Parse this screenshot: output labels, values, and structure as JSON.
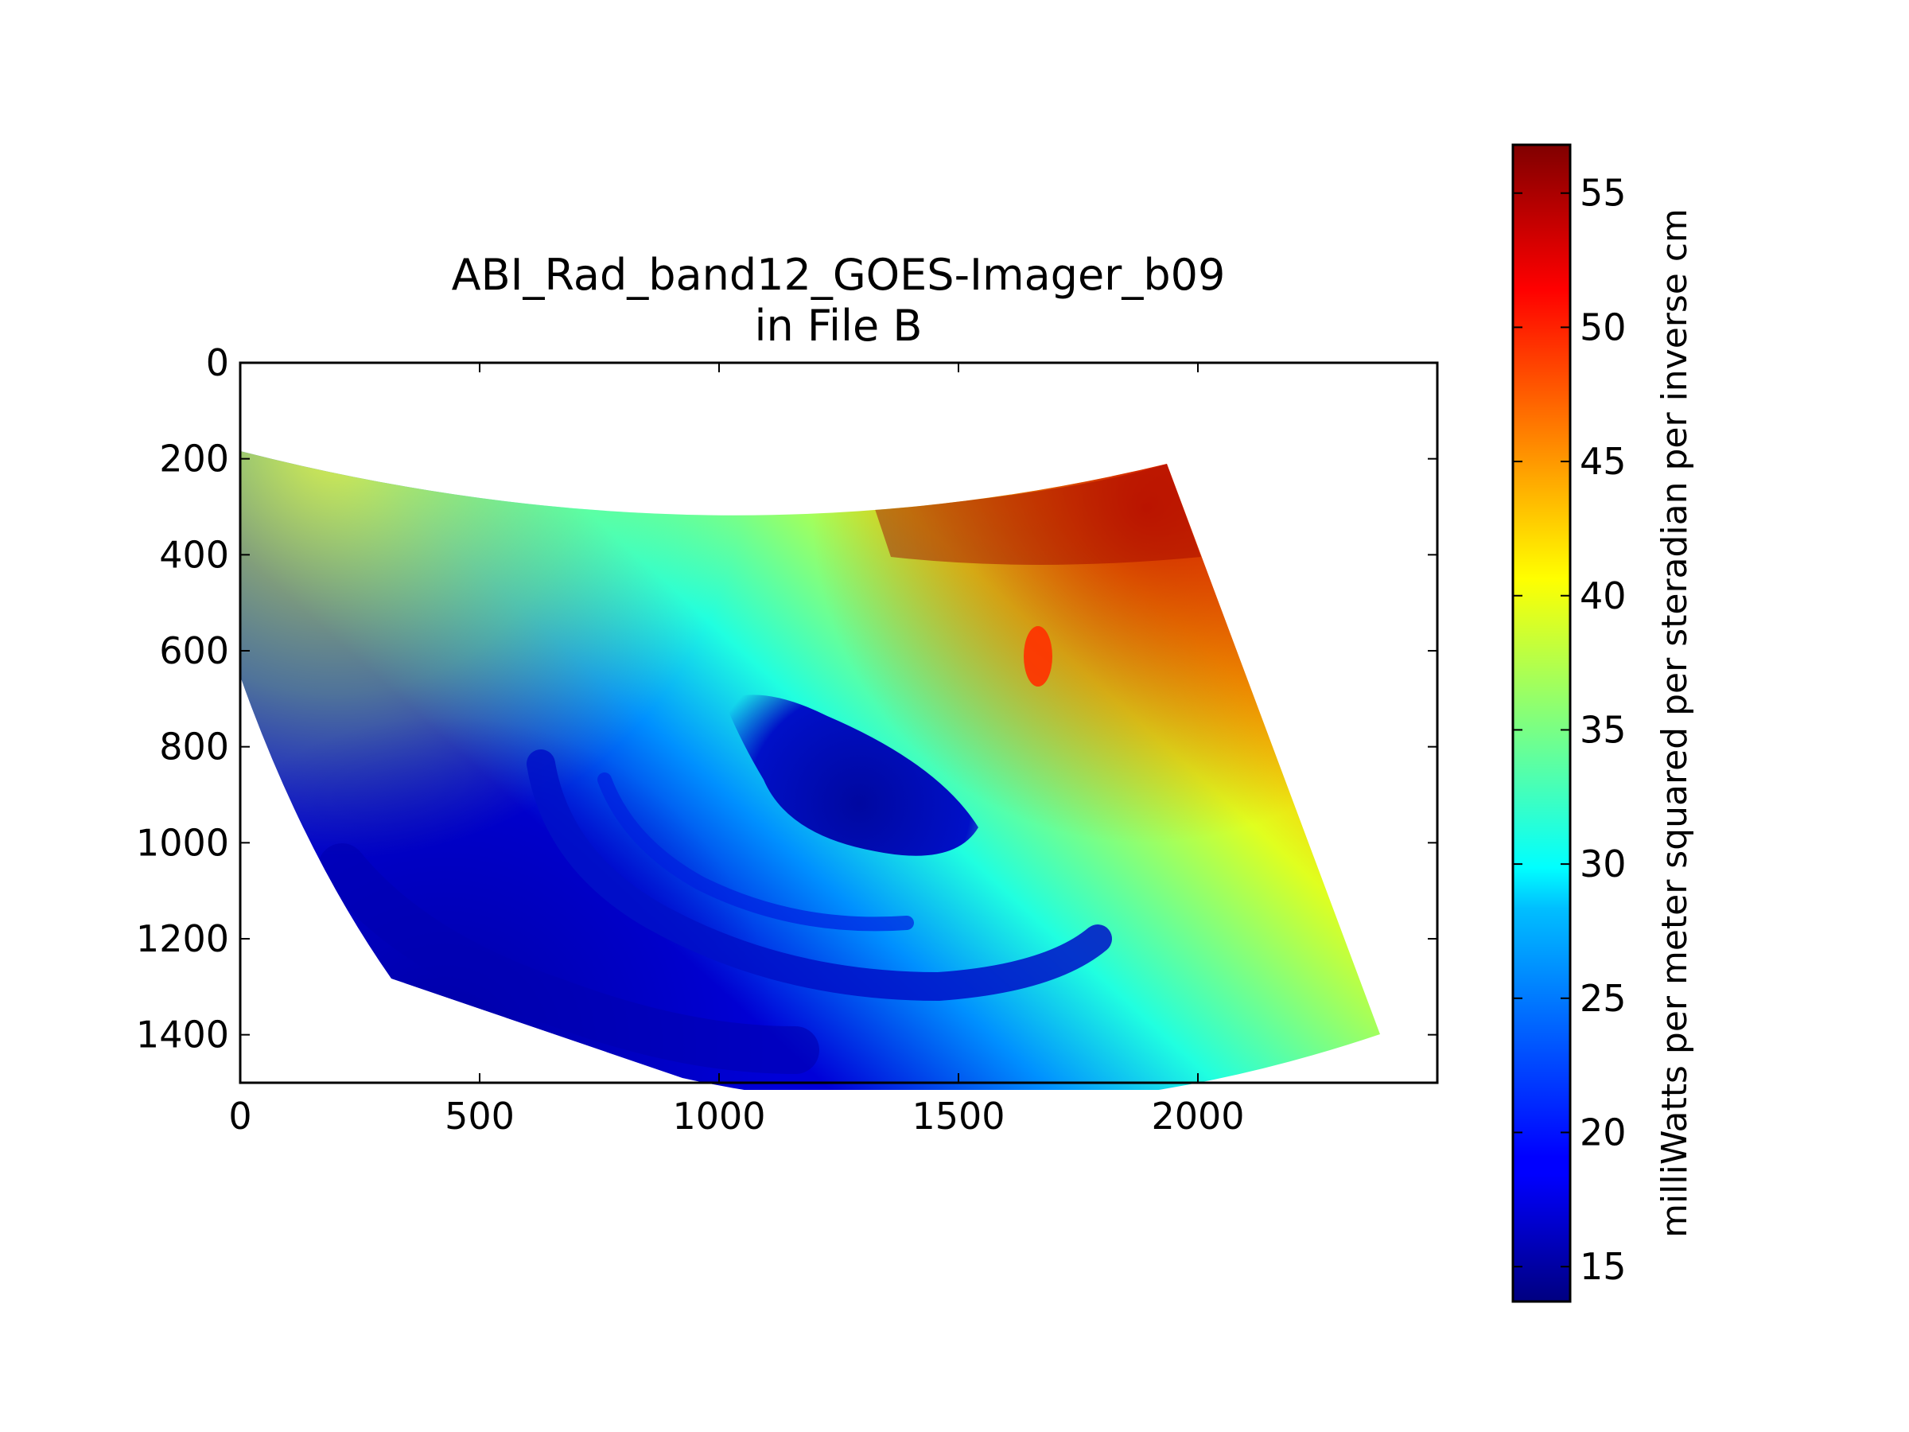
{
  "chart_data": {
    "type": "heatmap",
    "title": [
      "ABI_Rad_band12_GOES-Imager_b09",
      "in File B"
    ],
    "x_axis": {
      "range": [
        0,
        2500
      ],
      "ticks": [
        0,
        500,
        1000,
        1500,
        2000
      ],
      "tick_labels": [
        "0",
        "500",
        "1000",
        "1500",
        "2000"
      ]
    },
    "y_axis": {
      "range": [
        0,
        1500
      ],
      "inverted": true,
      "ticks": [
        0,
        200,
        400,
        600,
        800,
        1000,
        1200,
        1400
      ],
      "tick_labels": [
        "0",
        "200",
        "400",
        "600",
        "800",
        "1000",
        "1200",
        "1400"
      ]
    },
    "colorbar": {
      "colormap": "jet",
      "range": [
        13.7,
        56.8
      ],
      "ticks": [
        15,
        20,
        25,
        30,
        35,
        40,
        45,
        50,
        55
      ],
      "tick_labels": [
        "15",
        "20",
        "25",
        "30",
        "35",
        "40",
        "45",
        "50",
        "55"
      ],
      "label": "milliWatts per meter squared per steradian per inverse cm"
    },
    "grid": false,
    "features": [
      {
        "region": "upper right (northern disk)",
        "approx_value": 52
      },
      {
        "region": "center-left band",
        "approx_value": 41
      },
      {
        "region": "swirling cloud system near x=1300,y=900",
        "approx_value": 17
      },
      {
        "region": "lower left edge",
        "approx_value": 18
      }
    ]
  }
}
